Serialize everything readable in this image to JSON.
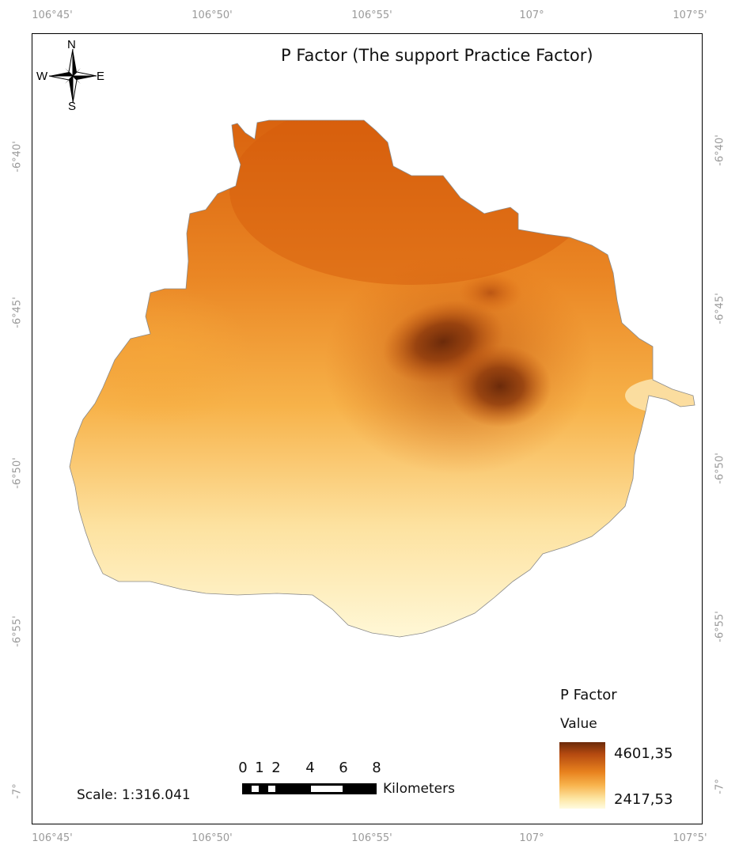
{
  "map": {
    "title": "P Factor (The support Practice Factor)",
    "top_ticks": [
      "106°45'",
      "106°50'",
      "106°55'",
      "107°",
      "107°5'"
    ],
    "bottom_ticks": [
      "106°45'",
      "106°50'",
      "106°55'",
      "107°",
      "107°5'"
    ],
    "left_ticks": [
      "-6°40'",
      "-6°45'",
      "-6°50'",
      "-6°55'",
      "-7°"
    ],
    "right_ticks": [
      "-6°40'",
      "-6°45'",
      "-6°50'",
      "-6°55'",
      "-7°"
    ]
  },
  "compass": {
    "n": "N",
    "s": "S",
    "e": "E",
    "w": "W"
  },
  "legend": {
    "title": "P Factor",
    "subtitle": "Value",
    "max": "4601,35",
    "min": "2417,53",
    "colors": {
      "high": "#6b2a0a",
      "mid": "#e8821e",
      "low": "#fffbe0"
    }
  },
  "scalebar": {
    "scale_text": "Scale: 1:316.041",
    "labels": [
      "0",
      "1",
      "2",
      "4",
      "6",
      "8"
    ],
    "unit": "Kilometers"
  }
}
